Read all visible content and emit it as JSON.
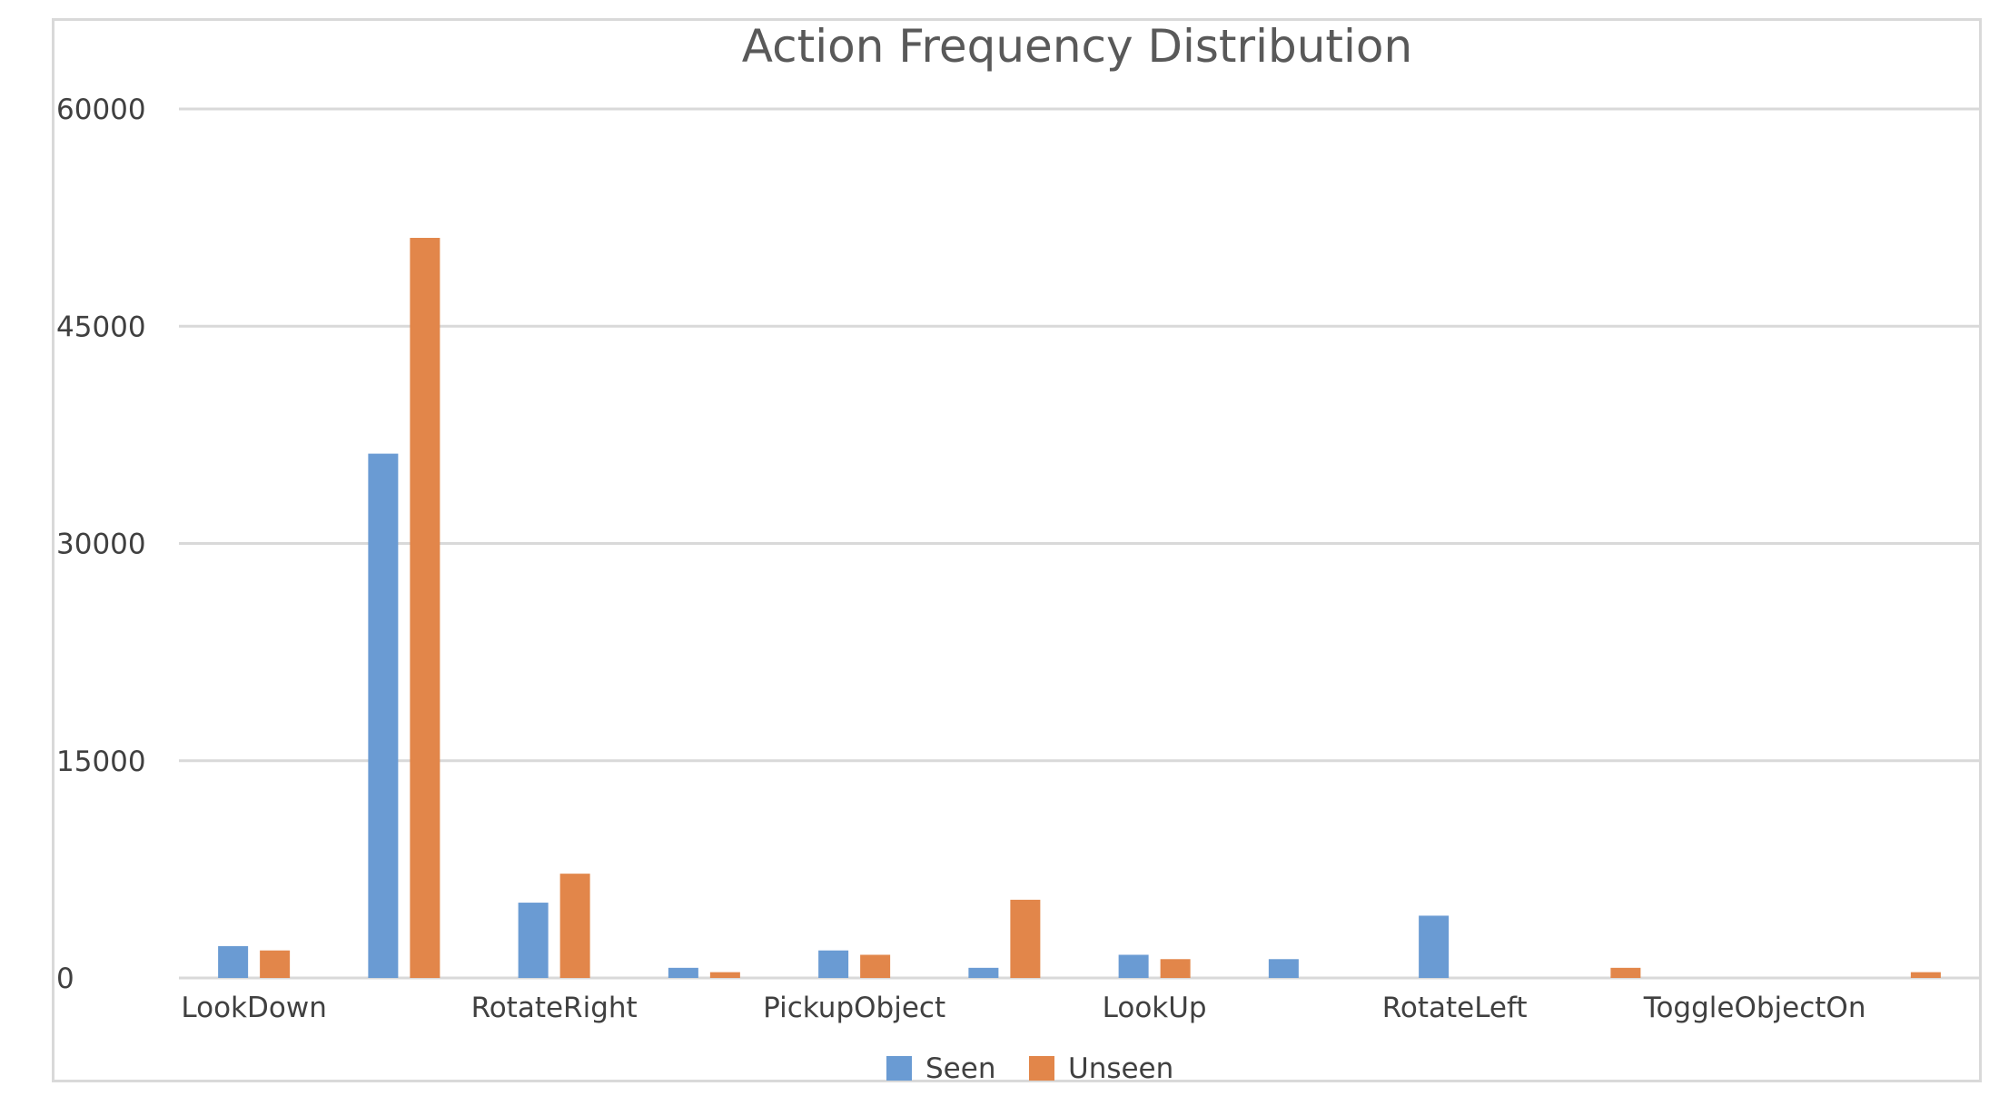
{
  "chart_data": {
    "type": "bar",
    "title": "Action Frequency Distribution",
    "xlabel": "",
    "ylabel": "",
    "ylim": [
      0,
      60000
    ],
    "yticks": [
      0,
      15000,
      30000,
      45000,
      60000
    ],
    "categories": [
      "LookDown",
      "",
      "RotateRight",
      "",
      "PickupObject",
      "",
      "LookUp",
      "",
      "RotateLeft",
      "",
      "ToggleObjectOn",
      ""
    ],
    "series": [
      {
        "name": "Seen",
        "color": "#6a9bd3",
        "values": [
          2200,
          36200,
          5200,
          700,
          1900,
          700,
          1600,
          1300,
          4300,
          0,
          0,
          0
        ]
      },
      {
        "name": "Unseen",
        "color": "#e2864a",
        "values": [
          1900,
          51100,
          7200,
          400,
          1600,
          5400,
          1300,
          0,
          0,
          700,
          0,
          400
        ]
      }
    ],
    "grid": true,
    "legend": "bottom"
  }
}
